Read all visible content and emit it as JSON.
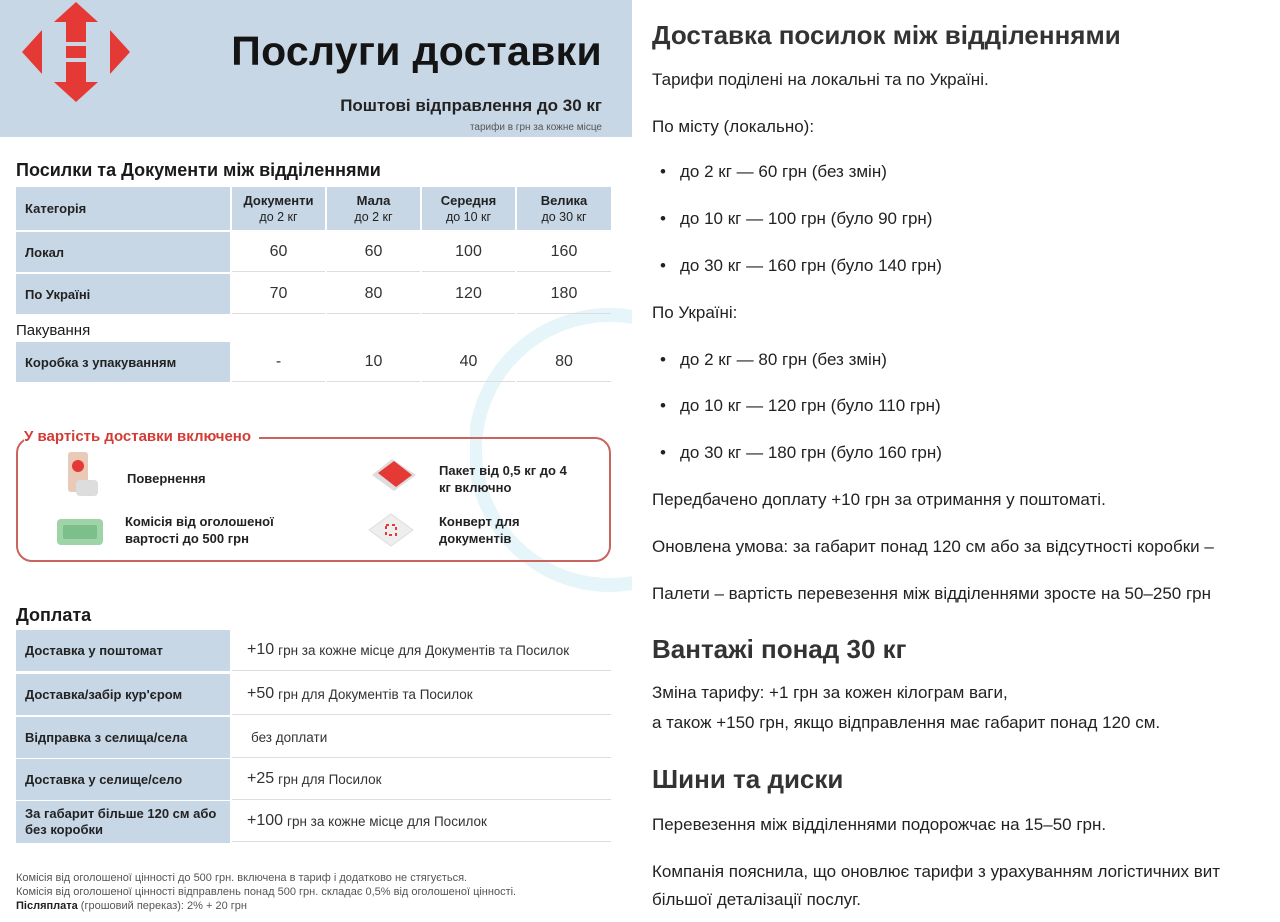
{
  "infographic": {
    "brand_color": "#e53935",
    "title": "Послуги доставки",
    "subtitle": "Поштові відправлення до 30 кг",
    "note": "тарифи в грн за кожне місце",
    "parcels": {
      "heading": "Посилки та Документи між відділеннями",
      "columns": [
        {
          "name": "Категорія",
          "sub": ""
        },
        {
          "name": "Документи",
          "sub": "до 2 кг"
        },
        {
          "name": "Мала",
          "sub": "до 2 кг"
        },
        {
          "name": "Середня",
          "sub": "до 10 кг"
        },
        {
          "name": "Велика",
          "sub": "до 30 кг"
        }
      ],
      "rows": [
        {
          "label": "Локал",
          "values": [
            "60",
            "60",
            "100",
            "160"
          ]
        },
        {
          "label": "По Україні",
          "values": [
            "70",
            "80",
            "120",
            "180"
          ]
        }
      ],
      "packaging_heading": "Пакування",
      "packaging_row": {
        "label": "Коробка з упакуванням",
        "values": [
          "-",
          "10",
          "40",
          "80"
        ]
      }
    },
    "included": {
      "heading": "У вартість доставки включено",
      "items": [
        "Повернення",
        "Пакет від 0,5 кг до 4 кг включно",
        "Комісія від оголошеної вартості до 500 грн",
        "Конверт для документів"
      ]
    },
    "surcharge": {
      "heading": "Доплата",
      "rows": [
        {
          "label": "Доставка у поштомат",
          "amount": "+10",
          "desc": "грн за кожне місце для Документів та Посилок"
        },
        {
          "label": "Доставка/забір кур'єром",
          "amount": "+50",
          "desc": "грн для Документів та Посилок"
        },
        {
          "label": "Відправка з селища/села",
          "amount": "",
          "desc": "без доплати"
        },
        {
          "label": "Доставка у селище/село",
          "amount": "+25",
          "desc": "грн для Посилок"
        },
        {
          "label": "За габарит більше 120 см або без коробки",
          "amount": "+100",
          "desc": "грн за кожне місце для Посилок"
        }
      ]
    },
    "footnotes": [
      "Комісія від оголошеної цінності до 500 грн. включена в тариф і додатково не стягується.",
      "Комісія від оголошеної цінності відправлень понад 500 грн. складає 0,5% від оголошеної цінності."
    ],
    "cod_label": "Післяплата",
    "cod_text": " (грошовий переказ): 2% + 20 грн"
  },
  "article": {
    "h1": "Доставка посилок між відділеннями",
    "p1": "Тарифи поділені на локальні та по Україні.",
    "local_label": "По місту (локально):",
    "local": [
      "до 2 кг — 60 грн (без змін)",
      "до 10 кг — 100 грн (було 90 грн)",
      "до 30 кг — 160 грн (було 140 грн)"
    ],
    "ua_label": "По Україні:",
    "ua": [
      "до 2 кг — 80 грн (без змін)",
      "до 10 кг — 120 грн (було 110 грн)",
      "до 30 кг — 180 грн (було 160 грн)"
    ],
    "p2": "Передбачено доплату +10 грн за отримання у поштоматі.",
    "p3": "Оновлена умова: за габарит понад 120 см або за відсутності коробки –",
    "p4": "Палети – вартість перевезення між відділеннями зросте на 50–250 грн",
    "h2a": "Вантажі понад 30 кг",
    "p5a": "Зміна тарифу: +1 грн за кожен кілограм ваги,",
    "p5b": "а також +150 грн, якщо відправлення має габарит понад 120 см.",
    "h2b": "Шини та диски",
    "p6": "Перевезення між відділеннями подорожчає на 15–50 грн.",
    "p7a": "Компанія пояснила, що оновлює тарифи з урахуванням логістичних вит",
    "p7b": "більшої деталізації послуг."
  }
}
